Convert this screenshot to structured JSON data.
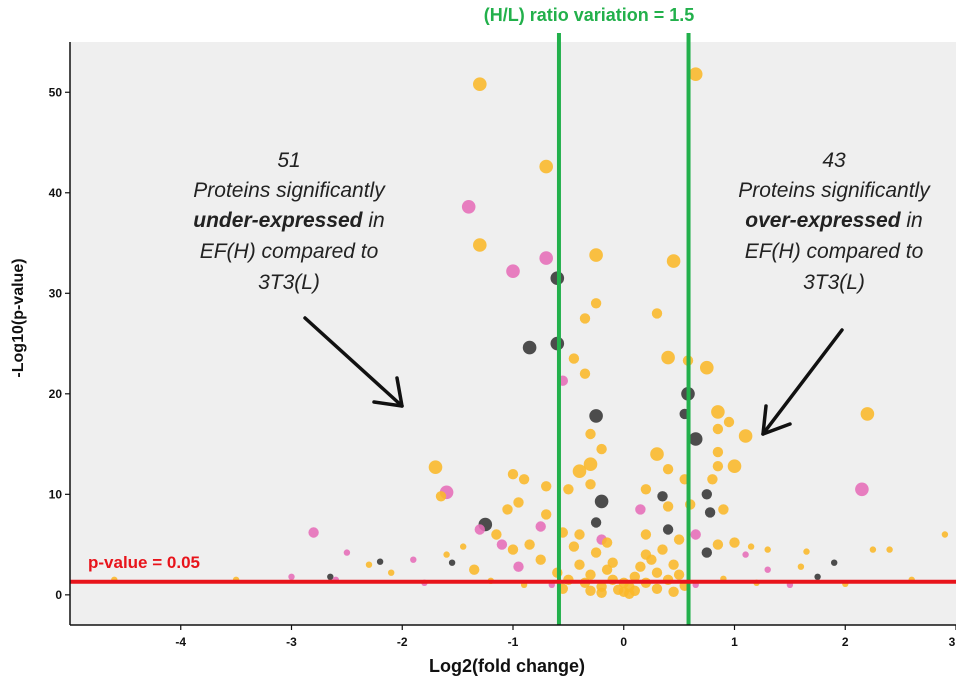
{
  "chart_data": {
    "type": "scatter",
    "title": "",
    "xlabel": "Log2(fold change)",
    "ylabel": "-Log10(p-value)",
    "xlim": [
      -5,
      3
    ],
    "ylim": [
      -3,
      55
    ],
    "x_ticks": [
      -4,
      -3,
      -2,
      -1,
      0,
      1,
      2,
      3
    ],
    "x_tick_labels": [
      "-4",
      "-3",
      "-2",
      "-1",
      "0",
      "1",
      "2",
      "3"
    ],
    "y_ticks": [
      0,
      10,
      20,
      30,
      40,
      50
    ],
    "y_tick_labels": [
      "0",
      "10",
      "20",
      "30",
      "40",
      "50"
    ],
    "grid": false,
    "background": "#efefef",
    "colors": {
      "orange": "#fbb829",
      "pink": "#e66db8",
      "black": "#3a3a3a",
      "threshold_fc": "#22b04b",
      "threshold_p": "#e8141b",
      "arrow": "#111111"
    },
    "reference_lines": [
      {
        "orientation": "vertical",
        "x": -0.585,
        "color": "#22b04b"
      },
      {
        "orientation": "vertical",
        "x": 0.585,
        "color": "#22b04b"
      },
      {
        "orientation": "horizontal",
        "y": 1.3,
        "color": "#e8141b"
      }
    ],
    "labels": {
      "fc_threshold": "(H/L) ratio variation  = 1.5",
      "p_threshold": "p-value  = 0.05"
    },
    "annotations": [
      {
        "side": "left",
        "count": "51",
        "line1": "Proteins significantly",
        "bold": "under-expressed",
        "line2_suffix": " in",
        "line3": "EF(H) compared to",
        "line4": "3T3(L)"
      },
      {
        "side": "right",
        "count": "43",
        "line1": "Proteins significantly",
        "bold": "over-expressed",
        "line2_suffix": " in",
        "line3": "EF(H) compared to",
        "line4": "3T3(L)"
      }
    ],
    "points": [
      {
        "x": -1.3,
        "y": 50.8,
        "c": "orange",
        "s": 3
      },
      {
        "x": 0.65,
        "y": 51.8,
        "c": "orange",
        "s": 3
      },
      {
        "x": -0.7,
        "y": 42.6,
        "c": "orange",
        "s": 3
      },
      {
        "x": -1.4,
        "y": 38.6,
        "c": "pink",
        "s": 3
      },
      {
        "x": -1.3,
        "y": 34.8,
        "c": "orange",
        "s": 3
      },
      {
        "x": -1.0,
        "y": 32.2,
        "c": "pink",
        "s": 3
      },
      {
        "x": -0.7,
        "y": 33.5,
        "c": "pink",
        "s": 3
      },
      {
        "x": -0.6,
        "y": 31.5,
        "c": "black",
        "s": 3
      },
      {
        "x": -0.25,
        "y": 33.8,
        "c": "orange",
        "s": 3
      },
      {
        "x": 0.45,
        "y": 33.2,
        "c": "orange",
        "s": 3
      },
      {
        "x": -0.85,
        "y": 24.6,
        "c": "black",
        "s": 3
      },
      {
        "x": -0.6,
        "y": 25.0,
        "c": "black",
        "s": 3
      },
      {
        "x": -0.35,
        "y": 27.5,
        "c": "orange",
        "s": 2
      },
      {
        "x": -0.25,
        "y": 29.0,
        "c": "orange",
        "s": 2
      },
      {
        "x": 0.3,
        "y": 28.0,
        "c": "orange",
        "s": 2
      },
      {
        "x": -0.45,
        "y": 23.5,
        "c": "orange",
        "s": 2
      },
      {
        "x": -0.35,
        "y": 22.0,
        "c": "orange",
        "s": 2
      },
      {
        "x": -0.55,
        "y": 21.3,
        "c": "pink",
        "s": 2
      },
      {
        "x": 0.4,
        "y": 23.6,
        "c": "orange",
        "s": 3
      },
      {
        "x": 0.58,
        "y": 23.3,
        "c": "orange",
        "s": 2
      },
      {
        "x": 0.75,
        "y": 22.6,
        "c": "orange",
        "s": 3
      },
      {
        "x": -0.25,
        "y": 17.8,
        "c": "black",
        "s": 3
      },
      {
        "x": 0.58,
        "y": 20.0,
        "c": "black",
        "s": 3
      },
      {
        "x": 0.55,
        "y": 18.0,
        "c": "black",
        "s": 2
      },
      {
        "x": 0.85,
        "y": 18.2,
        "c": "orange",
        "s": 3
      },
      {
        "x": 0.95,
        "y": 17.2,
        "c": "orange",
        "s": 2
      },
      {
        "x": 0.85,
        "y": 16.5,
        "c": "orange",
        "s": 2
      },
      {
        "x": 1.1,
        "y": 15.8,
        "c": "orange",
        "s": 3
      },
      {
        "x": 0.65,
        "y": 15.5,
        "c": "black",
        "s": 3
      },
      {
        "x": 0.85,
        "y": 14.2,
        "c": "orange",
        "s": 2
      },
      {
        "x": 2.2,
        "y": 18.0,
        "c": "orange",
        "s": 3
      },
      {
        "x": -0.3,
        "y": 16.0,
        "c": "orange",
        "s": 2
      },
      {
        "x": -0.2,
        "y": 14.5,
        "c": "orange",
        "s": 2
      },
      {
        "x": -0.3,
        "y": 13.0,
        "c": "orange",
        "s": 3
      },
      {
        "x": -0.4,
        "y": 12.3,
        "c": "orange",
        "s": 3
      },
      {
        "x": 0.3,
        "y": 14.0,
        "c": "orange",
        "s": 3
      },
      {
        "x": 0.4,
        "y": 12.5,
        "c": "orange",
        "s": 2
      },
      {
        "x": 0.55,
        "y": 11.5,
        "c": "orange",
        "s": 2
      },
      {
        "x": 0.85,
        "y": 12.8,
        "c": "orange",
        "s": 2
      },
      {
        "x": 1.0,
        "y": 12.8,
        "c": "orange",
        "s": 3
      },
      {
        "x": 0.8,
        "y": 11.5,
        "c": "orange",
        "s": 2
      },
      {
        "x": -1.7,
        "y": 12.7,
        "c": "orange",
        "s": 3
      },
      {
        "x": -1.0,
        "y": 12.0,
        "c": "orange",
        "s": 2
      },
      {
        "x": -0.9,
        "y": 11.5,
        "c": "orange",
        "s": 2
      },
      {
        "x": -1.6,
        "y": 10.2,
        "c": "pink",
        "s": 3
      },
      {
        "x": -1.65,
        "y": 9.8,
        "c": "orange",
        "s": 2
      },
      {
        "x": 2.15,
        "y": 10.5,
        "c": "pink",
        "s": 3
      },
      {
        "x": -0.7,
        "y": 10.8,
        "c": "orange",
        "s": 2
      },
      {
        "x": -0.5,
        "y": 10.5,
        "c": "orange",
        "s": 2
      },
      {
        "x": 0.2,
        "y": 10.5,
        "c": "orange",
        "s": 2
      },
      {
        "x": -0.3,
        "y": 11.0,
        "c": "orange",
        "s": 2
      },
      {
        "x": 0.35,
        "y": 9.8,
        "c": "black",
        "s": 2
      },
      {
        "x": 0.75,
        "y": 10.0,
        "c": "black",
        "s": 2
      },
      {
        "x": -0.95,
        "y": 9.2,
        "c": "orange",
        "s": 2
      },
      {
        "x": -1.05,
        "y": 8.5,
        "c": "orange",
        "s": 2
      },
      {
        "x": -0.7,
        "y": 8.0,
        "c": "orange",
        "s": 2
      },
      {
        "x": 0.6,
        "y": 9.0,
        "c": "orange",
        "s": 2
      },
      {
        "x": 0.9,
        "y": 8.5,
        "c": "orange",
        "s": 2
      },
      {
        "x": 0.78,
        "y": 8.2,
        "c": "black",
        "s": 2
      },
      {
        "x": -0.2,
        "y": 9.3,
        "c": "black",
        "s": 3
      },
      {
        "x": 0.15,
        "y": 8.5,
        "c": "pink",
        "s": 2
      },
      {
        "x": 0.4,
        "y": 8.8,
        "c": "orange",
        "s": 2
      },
      {
        "x": -1.25,
        "y": 7.0,
        "c": "black",
        "s": 3
      },
      {
        "x": -1.3,
        "y": 6.5,
        "c": "pink",
        "s": 2
      },
      {
        "x": -1.15,
        "y": 6.0,
        "c": "orange",
        "s": 2
      },
      {
        "x": -0.75,
        "y": 6.8,
        "c": "pink",
        "s": 2
      },
      {
        "x": -0.55,
        "y": 6.2,
        "c": "orange",
        "s": 2
      },
      {
        "x": -0.25,
        "y": 7.2,
        "c": "black",
        "s": 2
      },
      {
        "x": -0.4,
        "y": 6.0,
        "c": "orange",
        "s": 2
      },
      {
        "x": -0.2,
        "y": 5.5,
        "c": "pink",
        "s": 2
      },
      {
        "x": 0.2,
        "y": 6.0,
        "c": "orange",
        "s": 2
      },
      {
        "x": 0.4,
        "y": 6.5,
        "c": "black",
        "s": 2
      },
      {
        "x": 0.5,
        "y": 5.5,
        "c": "orange",
        "s": 2
      },
      {
        "x": 0.65,
        "y": 6.0,
        "c": "pink",
        "s": 2
      },
      {
        "x": 0.85,
        "y": 5.0,
        "c": "orange",
        "s": 2
      },
      {
        "x": 0.75,
        "y": 4.2,
        "c": "black",
        "s": 2
      },
      {
        "x": 1.0,
        "y": 5.2,
        "c": "orange",
        "s": 2
      },
      {
        "x": 1.15,
        "y": 4.8,
        "c": "orange",
        "s": 1
      },
      {
        "x": 1.3,
        "y": 4.5,
        "c": "orange",
        "s": 1
      },
      {
        "x": 1.1,
        "y": 4.0,
        "c": "pink",
        "s": 1
      },
      {
        "x": -1.1,
        "y": 5.0,
        "c": "pink",
        "s": 2
      },
      {
        "x": -1.0,
        "y": 4.5,
        "c": "orange",
        "s": 2
      },
      {
        "x": -0.85,
        "y": 5.0,
        "c": "orange",
        "s": 2
      },
      {
        "x": -1.45,
        "y": 4.8,
        "c": "orange",
        "s": 1
      },
      {
        "x": -1.6,
        "y": 4.0,
        "c": "orange",
        "s": 1
      },
      {
        "x": -1.55,
        "y": 3.2,
        "c": "black",
        "s": 1
      },
      {
        "x": -2.3,
        "y": 3.0,
        "c": "orange",
        "s": 1
      },
      {
        "x": -2.5,
        "y": 4.2,
        "c": "pink",
        "s": 1
      },
      {
        "x": -2.8,
        "y": 6.2,
        "c": "pink",
        "s": 2
      },
      {
        "x": -1.9,
        "y": 3.5,
        "c": "pink",
        "s": 1
      },
      {
        "x": -2.2,
        "y": 3.3,
        "c": "black",
        "s": 1
      },
      {
        "x": -2.65,
        "y": 1.8,
        "c": "black",
        "s": 1
      },
      {
        "x": -2.6,
        "y": 1.5,
        "c": "pink",
        "s": 1
      },
      {
        "x": -2.1,
        "y": 2.2,
        "c": "orange",
        "s": 1
      },
      {
        "x": -4.6,
        "y": 1.5,
        "c": "orange",
        "s": 1
      },
      {
        "x": -3.5,
        "y": 1.5,
        "c": "orange",
        "s": 1
      },
      {
        "x": -3.0,
        "y": 1.8,
        "c": "pink",
        "s": 1
      },
      {
        "x": -1.35,
        "y": 2.5,
        "c": "orange",
        "s": 2
      },
      {
        "x": -0.95,
        "y": 2.8,
        "c": "pink",
        "s": 2
      },
      {
        "x": -0.75,
        "y": 3.5,
        "c": "orange",
        "s": 2
      },
      {
        "x": 1.3,
        "y": 2.5,
        "c": "pink",
        "s": 1
      },
      {
        "x": 1.6,
        "y": 2.8,
        "c": "orange",
        "s": 1
      },
      {
        "x": 1.9,
        "y": 3.2,
        "c": "black",
        "s": 1
      },
      {
        "x": 1.65,
        "y": 4.3,
        "c": "orange",
        "s": 1
      },
      {
        "x": 2.25,
        "y": 4.5,
        "c": "orange",
        "s": 1
      },
      {
        "x": 2.4,
        "y": 4.5,
        "c": "orange",
        "s": 1
      },
      {
        "x": 1.75,
        "y": 1.8,
        "c": "black",
        "s": 1
      },
      {
        "x": 2.6,
        "y": 1.5,
        "c": "orange",
        "s": 1
      },
      {
        "x": -0.6,
        "y": 2.2,
        "c": "orange",
        "s": 2
      },
      {
        "x": -0.5,
        "y": 1.5,
        "c": "orange",
        "s": 2
      },
      {
        "x": -0.4,
        "y": 3.0,
        "c": "orange",
        "s": 2
      },
      {
        "x": -0.35,
        "y": 1.2,
        "c": "orange",
        "s": 2
      },
      {
        "x": -0.3,
        "y": 2.0,
        "c": "orange",
        "s": 2
      },
      {
        "x": -0.25,
        "y": 4.2,
        "c": "orange",
        "s": 2
      },
      {
        "x": -0.2,
        "y": 0.8,
        "c": "orange",
        "s": 2
      },
      {
        "x": -0.15,
        "y": 2.5,
        "c": "orange",
        "s": 2
      },
      {
        "x": -0.1,
        "y": 1.5,
        "c": "orange",
        "s": 2
      },
      {
        "x": -0.05,
        "y": 0.5,
        "c": "orange",
        "s": 2
      },
      {
        "x": 0.0,
        "y": 0.3,
        "c": "orange",
        "s": 2
      },
      {
        "x": 0.05,
        "y": 0.8,
        "c": "orange",
        "s": 2
      },
      {
        "x": 0.1,
        "y": 1.8,
        "c": "orange",
        "s": 2
      },
      {
        "x": 0.15,
        "y": 2.8,
        "c": "orange",
        "s": 2
      },
      {
        "x": 0.2,
        "y": 1.2,
        "c": "orange",
        "s": 2
      },
      {
        "x": 0.25,
        "y": 3.5,
        "c": "orange",
        "s": 2
      },
      {
        "x": 0.3,
        "y": 2.2,
        "c": "orange",
        "s": 2
      },
      {
        "x": 0.35,
        "y": 4.5,
        "c": "orange",
        "s": 2
      },
      {
        "x": 0.4,
        "y": 1.5,
        "c": "orange",
        "s": 2
      },
      {
        "x": 0.45,
        "y": 3.0,
        "c": "orange",
        "s": 2
      },
      {
        "x": 0.5,
        "y": 2.0,
        "c": "orange",
        "s": 2
      },
      {
        "x": 0.55,
        "y": 0.9,
        "c": "orange",
        "s": 2
      },
      {
        "x": -0.45,
        "y": 4.8,
        "c": "orange",
        "s": 2
      },
      {
        "x": -0.15,
        "y": 5.2,
        "c": "orange",
        "s": 2
      },
      {
        "x": 0.2,
        "y": 4.0,
        "c": "orange",
        "s": 2
      },
      {
        "x": -0.55,
        "y": 0.6,
        "c": "orange",
        "s": 2
      },
      {
        "x": 0.0,
        "y": 1.2,
        "c": "orange",
        "s": 2
      },
      {
        "x": 0.1,
        "y": 0.4,
        "c": "orange",
        "s": 2
      },
      {
        "x": -0.1,
        "y": 3.2,
        "c": "orange",
        "s": 2
      },
      {
        "x": 0.3,
        "y": 0.6,
        "c": "orange",
        "s": 2
      },
      {
        "x": -0.3,
        "y": 0.4,
        "c": "orange",
        "s": 2
      },
      {
        "x": -0.2,
        "y": 0.2,
        "c": "orange",
        "s": 2
      },
      {
        "x": 0.05,
        "y": 0.1,
        "c": "orange",
        "s": 2
      },
      {
        "x": 0.45,
        "y": 0.3,
        "c": "orange",
        "s": 2
      },
      {
        "x": -0.65,
        "y": 1.0,
        "c": "pink",
        "s": 1
      },
      {
        "x": 0.65,
        "y": 1.0,
        "c": "pink",
        "s": 1
      },
      {
        "x": 0.9,
        "y": 1.6,
        "c": "orange",
        "s": 1
      },
      {
        "x": 1.2,
        "y": 1.2,
        "c": "orange",
        "s": 1
      },
      {
        "x": -1.2,
        "y": 1.4,
        "c": "orange",
        "s": 1
      },
      {
        "x": -0.9,
        "y": 1.0,
        "c": "orange",
        "s": 1
      },
      {
        "x": -1.8,
        "y": 1.2,
        "c": "pink",
        "s": 1
      },
      {
        "x": 1.5,
        "y": 1.0,
        "c": "pink",
        "s": 1
      },
      {
        "x": 2.0,
        "y": 1.1,
        "c": "orange",
        "s": 1
      },
      {
        "x": 2.9,
        "y": 6.0,
        "c": "orange",
        "s": 1
      }
    ]
  }
}
